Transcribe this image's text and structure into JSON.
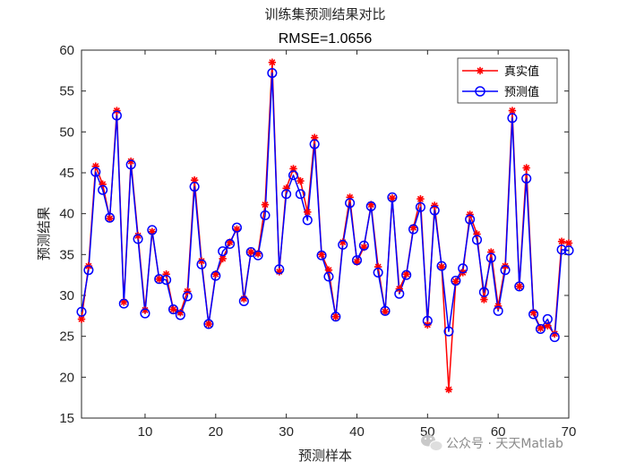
{
  "chart_data": {
    "type": "line",
    "title": "训练集预测结果对比",
    "subtitle": "RMSE=1.0656",
    "xlabel": "预测样本",
    "ylabel": "预测结果",
    "xlim": [
      1,
      70
    ],
    "ylim": [
      15,
      60
    ],
    "xticks": [
      10,
      20,
      30,
      40,
      50,
      60,
      70
    ],
    "yticks": [
      15,
      20,
      25,
      30,
      35,
      40,
      45,
      50,
      55,
      60
    ],
    "grid": false,
    "legend_position": "top-right",
    "series": [
      {
        "name": "真实值",
        "color": "#ff0000",
        "marker": "asterisk",
        "values": [
          27.1,
          33.6,
          45.8,
          43.6,
          39.4,
          52.6,
          29.2,
          46.4,
          37.3,
          28.2,
          37.8,
          32.0,
          32.6,
          28.3,
          27.9,
          30.5,
          44.1,
          34.2,
          26.5,
          32.6,
          34.5,
          36.5,
          38.1,
          29.6,
          35.3,
          35.1,
          41.1,
          58.5,
          32.9,
          43.1,
          45.5,
          44.0,
          40.2,
          49.3,
          35.0,
          33.1,
          27.4,
          36.5,
          42.0,
          34.1,
          35.9,
          41.1,
          33.5,
          28.0,
          41.9,
          30.8,
          32.6,
          38.3,
          41.8,
          26.4,
          41.0,
          33.5,
          18.5,
          31.7,
          32.8,
          39.9,
          37.5,
          29.5,
          35.3,
          28.7,
          33.6,
          52.6,
          31.1,
          45.6,
          27.9,
          26.0,
          26.3,
          25.3,
          36.6,
          36.4
        ]
      },
      {
        "name": "预测值",
        "color": "#0000ff",
        "marker": "circle",
        "values": [
          28.0,
          33.1,
          45.1,
          42.9,
          39.5,
          52.0,
          29.0,
          46.0,
          36.9,
          27.8,
          38.0,
          32.0,
          31.9,
          28.3,
          27.6,
          29.9,
          43.3,
          33.8,
          26.5,
          32.4,
          35.4,
          36.3,
          38.3,
          29.3,
          35.3,
          34.9,
          39.8,
          57.2,
          33.2,
          42.4,
          44.7,
          42.4,
          39.2,
          48.5,
          34.9,
          32.3,
          27.4,
          36.2,
          41.3,
          34.3,
          36.1,
          40.9,
          32.8,
          28.1,
          42.0,
          30.2,
          32.5,
          38.1,
          40.8,
          26.9,
          40.4,
          33.6,
          25.6,
          31.8,
          33.3,
          39.3,
          36.8,
          30.4,
          34.6,
          28.1,
          33.1,
          51.7,
          31.1,
          44.3,
          27.7,
          25.9,
          27.1,
          24.9,
          35.6,
          35.5
        ]
      }
    ]
  },
  "watermark": {
    "text": "公众号 · 天天Matlab",
    "icon": "wechat-icon"
  }
}
